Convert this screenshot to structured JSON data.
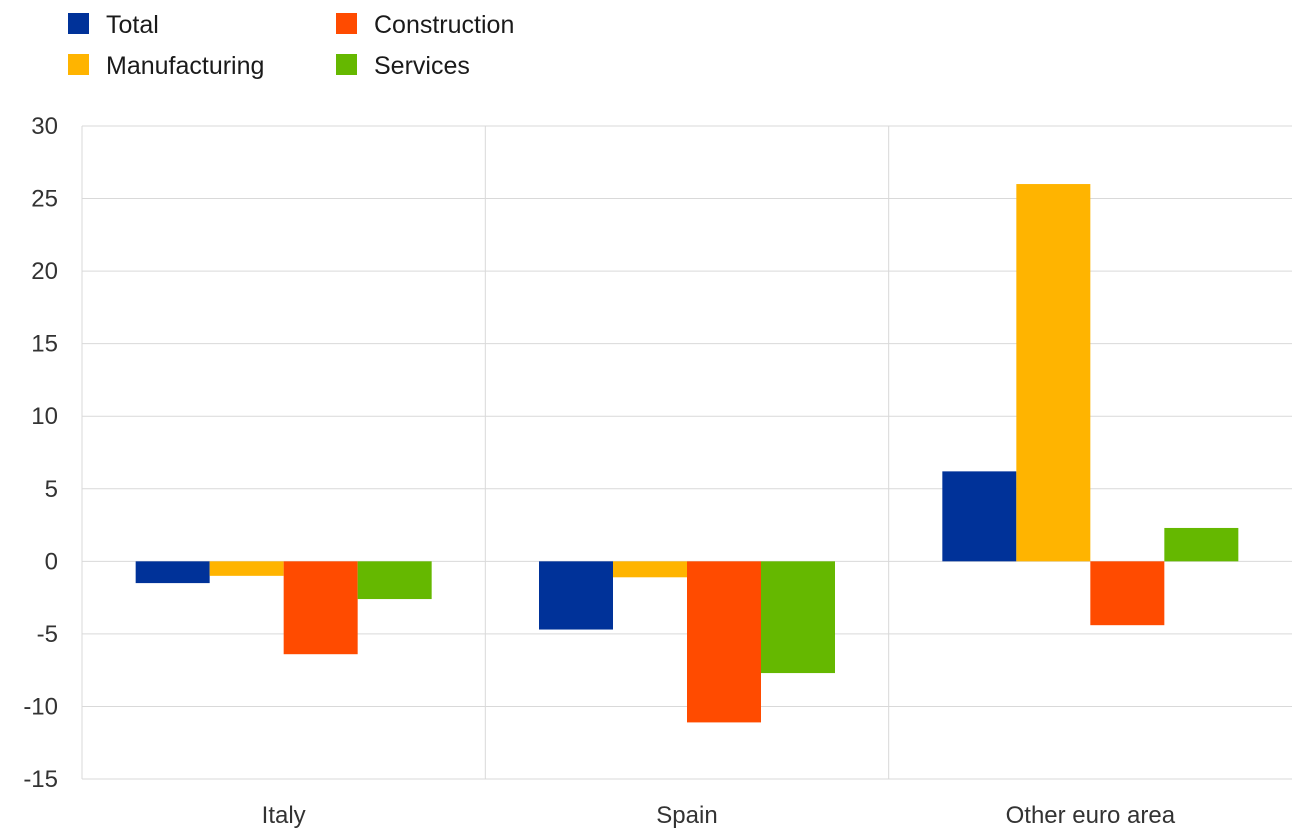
{
  "chart_data": {
    "type": "bar",
    "categories": [
      "Italy",
      "Spain",
      "Other euro area"
    ],
    "series": [
      {
        "name": "Total",
        "color": "#003299",
        "values": [
          -1.5,
          -4.7,
          6.2
        ]
      },
      {
        "name": "Manufacturing",
        "color": "#ffb400",
        "values": [
          -1.0,
          -1.1,
          26.0
        ]
      },
      {
        "name": "Construction",
        "color": "#ff4b00",
        "values": [
          -6.4,
          -11.1,
          -4.4
        ]
      },
      {
        "name": "Services",
        "color": "#65b800",
        "values": [
          -2.6,
          -7.7,
          2.3
        ]
      }
    ],
    "ylim": [
      -15,
      30
    ],
    "yticks": [
      30,
      25,
      20,
      15,
      10,
      5,
      0,
      -5,
      -10,
      -15
    ],
    "grid": true,
    "legend_position": "top-left",
    "colors": {
      "grid": "#d9d9d9",
      "tick_text": "#333333"
    }
  }
}
